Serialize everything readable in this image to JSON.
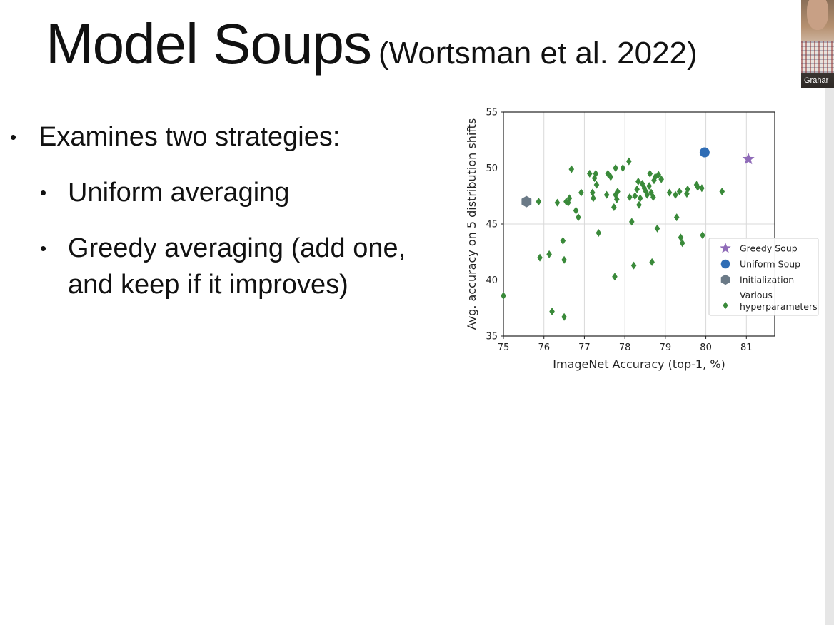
{
  "slide": {
    "title": "Model Soups",
    "citation": "(Wortsman et al. 2022)",
    "bullet_glyph": "•",
    "bullets": {
      "main": "Examines two strategies:",
      "sub1": "Uniform averaging",
      "sub2_line1": "Greedy averaging (add one,",
      "sub2_line2": "and keep if it improves)"
    }
  },
  "webcam": {
    "name_label": "Grahar"
  },
  "colors": {
    "greedy": "#8f6bb8",
    "uniform": "#2f6db5",
    "init": "#6b7a87",
    "various": "#3a8a3a",
    "grid": "#d9d9d9"
  },
  "chart_data": {
    "type": "scatter",
    "xlabel": "ImageNet Accuracy (top-1, %)",
    "ylabel": "Avg. accuracy on 5 distribution shifts",
    "xlim": [
      75,
      81.7
    ],
    "ylim": [
      35,
      55
    ],
    "xticks": [
      75,
      76,
      77,
      78,
      79,
      80,
      81
    ],
    "yticks": [
      35,
      40,
      45,
      50,
      55
    ],
    "grid": true,
    "legend_position": "right",
    "series": [
      {
        "name": "Greedy Soup",
        "marker": "star",
        "points": [
          [
            81.05,
            50.8
          ]
        ]
      },
      {
        "name": "Uniform Soup",
        "marker": "circle",
        "points": [
          [
            79.97,
            51.4
          ]
        ]
      },
      {
        "name": "Initialization",
        "marker": "hexagon",
        "points": [
          [
            75.57,
            47.0
          ]
        ]
      },
      {
        "name_lines": [
          "Various",
          "hyperparameters"
        ],
        "marker": "diamond",
        "points": [
          [
            75.0,
            38.6
          ],
          [
            75.87,
            47.0
          ],
          [
            75.9,
            42.0
          ],
          [
            76.13,
            42.3
          ],
          [
            76.2,
            37.2
          ],
          [
            76.33,
            46.9
          ],
          [
            76.47,
            43.5
          ],
          [
            76.5,
            41.8
          ],
          [
            76.5,
            36.7
          ],
          [
            76.55,
            47.0
          ],
          [
            76.6,
            46.9
          ],
          [
            76.63,
            47.3
          ],
          [
            76.68,
            49.9
          ],
          [
            76.79,
            46.2
          ],
          [
            76.85,
            45.6
          ],
          [
            76.92,
            47.8
          ],
          [
            77.13,
            49.5
          ],
          [
            77.2,
            47.8
          ],
          [
            77.25,
            49.1
          ],
          [
            77.28,
            49.5
          ],
          [
            77.3,
            48.5
          ],
          [
            77.35,
            44.2
          ],
          [
            77.22,
            47.3
          ],
          [
            77.55,
            47.6
          ],
          [
            77.58,
            49.5
          ],
          [
            77.65,
            49.2
          ],
          [
            77.73,
            46.5
          ],
          [
            77.75,
            40.3
          ],
          [
            77.77,
            47.6
          ],
          [
            77.77,
            50.0
          ],
          [
            77.8,
            47.2
          ],
          [
            77.82,
            47.9
          ],
          [
            77.95,
            50.0
          ],
          [
            78.1,
            50.6
          ],
          [
            78.12,
            47.4
          ],
          [
            78.17,
            45.2
          ],
          [
            78.22,
            41.3
          ],
          [
            78.25,
            47.5
          ],
          [
            78.3,
            48.1
          ],
          [
            78.33,
            48.8
          ],
          [
            78.35,
            46.7
          ],
          [
            78.38,
            47.3
          ],
          [
            78.43,
            48.6
          ],
          [
            78.48,
            48.2
          ],
          [
            78.52,
            47.9
          ],
          [
            78.55,
            47.6
          ],
          [
            78.6,
            48.4
          ],
          [
            78.62,
            49.5
          ],
          [
            78.65,
            47.8
          ],
          [
            78.67,
            41.6
          ],
          [
            78.7,
            47.4
          ],
          [
            78.72,
            48.9
          ],
          [
            78.75,
            49.2
          ],
          [
            78.8,
            44.6
          ],
          [
            78.83,
            49.4
          ],
          [
            78.9,
            49.0
          ],
          [
            79.1,
            47.8
          ],
          [
            79.25,
            47.6
          ],
          [
            79.28,
            45.6
          ],
          [
            79.35,
            47.9
          ],
          [
            79.38,
            43.8
          ],
          [
            79.42,
            43.3
          ],
          [
            79.53,
            47.7
          ],
          [
            79.55,
            48.1
          ],
          [
            79.77,
            48.5
          ],
          [
            79.8,
            48.3
          ],
          [
            79.9,
            48.2
          ],
          [
            79.92,
            44.0
          ],
          [
            80.4,
            47.9
          ]
        ]
      }
    ]
  }
}
